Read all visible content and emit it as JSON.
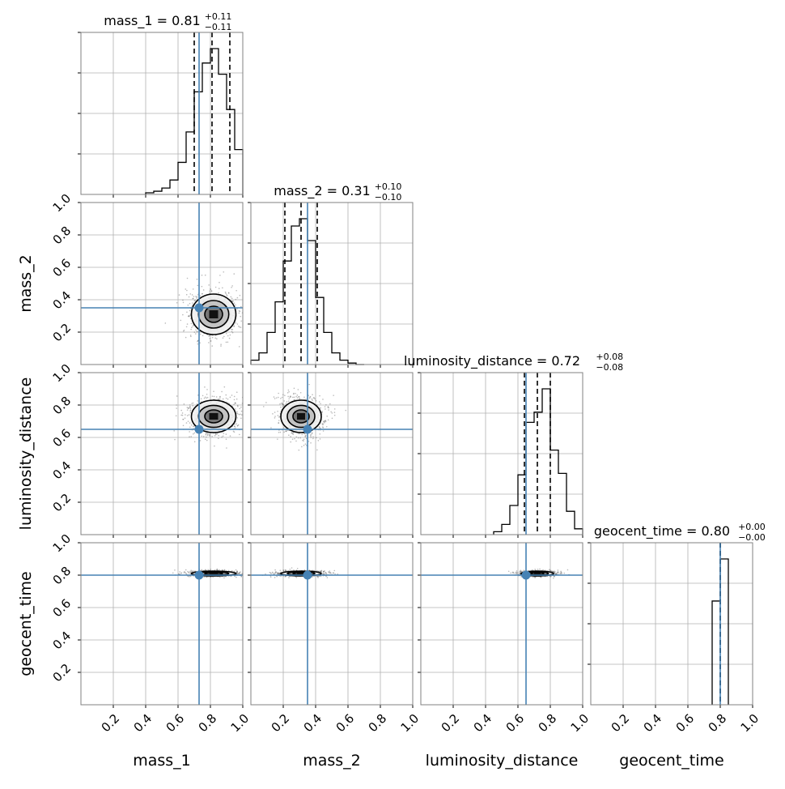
{
  "chart_data": {
    "type": "corner",
    "parameters": [
      "mass_1",
      "mass_2",
      "luminosity_distance",
      "geocent_time"
    ],
    "axis_labels": [
      "mass_1",
      "mass_2",
      "luminosity_distance",
      "geocent_time"
    ],
    "range": [
      0.0,
      1.0
    ],
    "tick_labels": [
      "0.2",
      "0.4",
      "0.6",
      "0.8",
      "1.0"
    ],
    "tick_values": [
      0.2,
      0.4,
      0.6,
      0.8,
      1.0
    ],
    "grid": true,
    "truth_color": "#4682b4",
    "truths": [
      0.73,
      0.35,
      0.65,
      0.8
    ],
    "titles": [
      {
        "name": "mass_1",
        "median": "0.81",
        "plus": "+0.11",
        "minus": "−0.11"
      },
      {
        "name": "mass_2",
        "median": "0.31",
        "plus": "+0.10",
        "minus": "−0.10"
      },
      {
        "name": "luminosity_distance",
        "median": "0.72",
        "plus": "+0.08",
        "minus": "−0.08"
      },
      {
        "name": "geocent_time",
        "median": "0.80",
        "plus": "+0.00",
        "minus": "−0.00"
      }
    ],
    "quantiles": [
      [
        0.7,
        0.81,
        0.92
      ],
      [
        0.21,
        0.31,
        0.41
      ],
      [
        0.64,
        0.72,
        0.8
      ],
      [
        0.8,
        0.8,
        0.8
      ]
    ],
    "histograms": [
      {
        "edges": [
          0.4,
          0.45,
          0.5,
          0.55,
          0.6,
          0.65,
          0.7,
          0.75,
          0.8,
          0.85,
          0.9,
          0.95,
          1.0
        ],
        "counts": [
          0.01,
          0.02,
          0.04,
          0.09,
          0.2,
          0.39,
          0.64,
          0.82,
          0.91,
          0.75,
          0.53,
          0.28
        ]
      },
      {
        "edges": [
          0.0,
          0.05,
          0.1,
          0.15,
          0.2,
          0.25,
          0.3,
          0.35,
          0.4,
          0.45,
          0.5,
          0.55,
          0.6,
          0.65,
          0.7
        ],
        "counts": [
          0.03,
          0.08,
          0.22,
          0.43,
          0.71,
          0.95,
          1.0,
          0.85,
          0.46,
          0.22,
          0.08,
          0.03,
          0.01,
          0.0
        ]
      },
      {
        "edges": [
          0.45,
          0.5,
          0.55,
          0.6,
          0.65,
          0.7,
          0.75,
          0.8,
          0.85,
          0.9,
          0.95,
          1.0
        ],
        "counts": [
          0.02,
          0.07,
          0.2,
          0.41,
          0.77,
          0.84,
          1.0,
          0.58,
          0.42,
          0.16,
          0.04
        ]
      },
      {
        "edges": [
          0.75,
          0.8,
          0.85
        ],
        "counts": [
          0.69,
          0.97
        ]
      }
    ],
    "posterior_2d": [
      {
        "x": "mass_1",
        "y": "mass_2",
        "cx": 0.82,
        "cy": 0.31,
        "sx": 0.11,
        "sy": 0.1
      },
      {
        "x": "mass_1",
        "y": "luminosity_distance",
        "cx": 0.82,
        "cy": 0.73,
        "sx": 0.11,
        "sy": 0.08
      },
      {
        "x": "mass_2",
        "y": "luminosity_distance",
        "cx": 0.31,
        "cy": 0.73,
        "sx": 0.1,
        "sy": 0.08
      },
      {
        "x": "mass_1",
        "y": "geocent_time",
        "cx": 0.82,
        "cy": 0.81,
        "sx": 0.11,
        "sy": 0.012
      },
      {
        "x": "mass_2",
        "y": "geocent_time",
        "cx": 0.31,
        "cy": 0.81,
        "sx": 0.1,
        "sy": 0.012
      },
      {
        "x": "luminosity_distance",
        "y": "geocent_time",
        "cx": 0.72,
        "cy": 0.81,
        "sx": 0.08,
        "sy": 0.012
      }
    ]
  }
}
